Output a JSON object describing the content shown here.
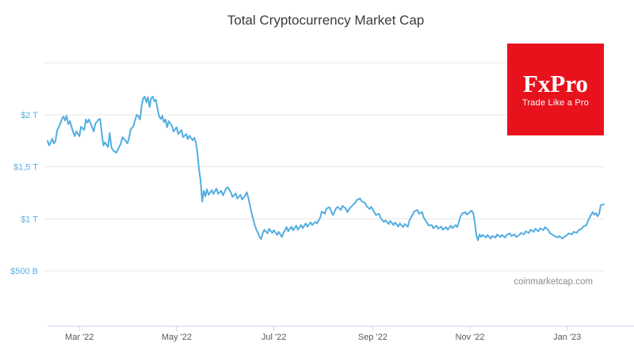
{
  "chart_data": {
    "type": "line",
    "title": "Total Cryptocurrency Market Cap",
    "source_note": "coinmarketcap.com",
    "grid": true,
    "legend": "none",
    "style": {
      "line": "#54aee1",
      "grid": "#e6e6e6",
      "axis": "#ccd6eb",
      "y_label": "#58b0e8",
      "x_label": "#595959",
      "title": "#3b3b3b",
      "source": "#8c8c8c"
    },
    "y_axis": {
      "side": "left",
      "range_billion_usd": [
        0,
        2650
      ],
      "ticks": [
        {
          "value_billion": 500,
          "label": "$500 B"
        },
        {
          "value_billion": 1000,
          "label": "$1 T"
        },
        {
          "value_billion": 1500,
          "label": "$1,5 T"
        },
        {
          "value_billion": 2000,
          "label": "$2 T"
        },
        {
          "value_billion": 2500,
          "label": ""
        }
      ]
    },
    "x_axis": {
      "ticks": [
        {
          "day": 20,
          "label": "Mar '22"
        },
        {
          "day": 81,
          "label": "May '22"
        },
        {
          "day": 142,
          "label": "Jul '22"
        },
        {
          "day": 204,
          "label": "Sep '22"
        },
        {
          "day": 265,
          "label": "Nov '22"
        },
        {
          "day": 326,
          "label": "Jan '23"
        }
      ]
    },
    "series": [
      {
        "name": "Total Cryptocurrency Market Cap",
        "color": "#54aee1",
        "points_day_valueB": [
          [
            0,
            1750
          ],
          [
            1,
            1705
          ],
          [
            2,
            1735
          ],
          [
            3,
            1770
          ],
          [
            4,
            1725
          ],
          [
            5,
            1750
          ],
          [
            6,
            1850
          ],
          [
            8,
            1915
          ],
          [
            9,
            1960
          ],
          [
            10,
            1985
          ],
          [
            11,
            1945
          ],
          [
            12,
            1990
          ],
          [
            13,
            1910
          ],
          [
            14,
            1940
          ],
          [
            16,
            1835
          ],
          [
            17,
            1795
          ],
          [
            18,
            1840
          ],
          [
            20,
            1795
          ],
          [
            21,
            1885
          ],
          [
            23,
            1855
          ],
          [
            24,
            1955
          ],
          [
            25,
            1925
          ],
          [
            26,
            1955
          ],
          [
            28,
            1880
          ],
          [
            29,
            1840
          ],
          [
            30,
            1915
          ],
          [
            32,
            1955
          ],
          [
            33,
            1960
          ],
          [
            34,
            1830
          ],
          [
            35,
            1705
          ],
          [
            36,
            1735
          ],
          [
            38,
            1690
          ],
          [
            39,
            1825
          ],
          [
            40,
            1690
          ],
          [
            41,
            1660
          ],
          [
            43,
            1635
          ],
          [
            44,
            1660
          ],
          [
            46,
            1725
          ],
          [
            47,
            1785
          ],
          [
            49,
            1750
          ],
          [
            50,
            1725
          ],
          [
            51,
            1765
          ],
          [
            52,
            1855
          ],
          [
            54,
            1895
          ],
          [
            55,
            1955
          ],
          [
            56,
            2000
          ],
          [
            57,
            1985
          ],
          [
            58,
            1955
          ],
          [
            59,
            2085
          ],
          [
            60,
            2160
          ],
          [
            61,
            2175
          ],
          [
            62,
            2120
          ],
          [
            63,
            2170
          ],
          [
            64,
            2075
          ],
          [
            65,
            2160
          ],
          [
            66,
            2175
          ],
          [
            67,
            2130
          ],
          [
            68,
            2145
          ],
          [
            69,
            2055
          ],
          [
            70,
            1985
          ],
          [
            71,
            1960
          ],
          [
            72,
            1990
          ],
          [
            73,
            1930
          ],
          [
            74,
            1955
          ],
          [
            75,
            1880
          ],
          [
            76,
            1940
          ],
          [
            78,
            1895
          ],
          [
            79,
            1840
          ],
          [
            81,
            1880
          ],
          [
            82,
            1815
          ],
          [
            84,
            1855
          ],
          [
            85,
            1785
          ],
          [
            87,
            1815
          ],
          [
            88,
            1765
          ],
          [
            89,
            1800
          ],
          [
            91,
            1755
          ],
          [
            92,
            1780
          ],
          [
            93,
            1735
          ],
          [
            94,
            1635
          ],
          [
            95,
            1475
          ],
          [
            96,
            1370
          ],
          [
            97,
            1165
          ],
          [
            98,
            1270
          ],
          [
            99,
            1215
          ],
          [
            100,
            1285
          ],
          [
            101,
            1230
          ],
          [
            103,
            1275
          ],
          [
            104,
            1240
          ],
          [
            106,
            1290
          ],
          [
            107,
            1240
          ],
          [
            109,
            1270
          ],
          [
            110,
            1225
          ],
          [
            112,
            1290
          ],
          [
            113,
            1305
          ],
          [
            115,
            1255
          ],
          [
            116,
            1210
          ],
          [
            118,
            1245
          ],
          [
            119,
            1195
          ],
          [
            121,
            1230
          ],
          [
            122,
            1185
          ],
          [
            124,
            1225
          ],
          [
            125,
            1255
          ],
          [
            126,
            1200
          ],
          [
            127,
            1125
          ],
          [
            128,
            1055
          ],
          [
            129,
            995
          ],
          [
            130,
            940
          ],
          [
            131,
            895
          ],
          [
            132,
            865
          ],
          [
            133,
            825
          ],
          [
            134,
            805
          ],
          [
            135,
            860
          ],
          [
            136,
            895
          ],
          [
            138,
            860
          ],
          [
            139,
            905
          ],
          [
            141,
            865
          ],
          [
            142,
            890
          ],
          [
            144,
            845
          ],
          [
            145,
            875
          ],
          [
            147,
            825
          ],
          [
            148,
            865
          ],
          [
            150,
            920
          ],
          [
            151,
            880
          ],
          [
            153,
            925
          ],
          [
            154,
            890
          ],
          [
            156,
            935
          ],
          [
            157,
            895
          ],
          [
            159,
            940
          ],
          [
            160,
            910
          ],
          [
            162,
            955
          ],
          [
            163,
            925
          ],
          [
            165,
            965
          ],
          [
            166,
            940
          ],
          [
            168,
            970
          ],
          [
            169,
            955
          ],
          [
            171,
            1010
          ],
          [
            172,
            1070
          ],
          [
            174,
            1050
          ],
          [
            175,
            1100
          ],
          [
            177,
            1110
          ],
          [
            178,
            1070
          ],
          [
            179,
            1035
          ],
          [
            181,
            1100
          ],
          [
            182,
            1115
          ],
          [
            184,
            1085
          ],
          [
            185,
            1125
          ],
          [
            187,
            1100
          ],
          [
            188,
            1065
          ],
          [
            190,
            1110
          ],
          [
            191,
            1125
          ],
          [
            193,
            1155
          ],
          [
            194,
            1180
          ],
          [
            196,
            1195
          ],
          [
            197,
            1170
          ],
          [
            199,
            1155
          ],
          [
            200,
            1125
          ],
          [
            202,
            1095
          ],
          [
            203,
            1115
          ],
          [
            205,
            1065
          ],
          [
            206,
            1035
          ],
          [
            208,
            1050
          ],
          [
            209,
            1005
          ],
          [
            211,
            970
          ],
          [
            212,
            985
          ],
          [
            214,
            950
          ],
          [
            215,
            980
          ],
          [
            217,
            940
          ],
          [
            218,
            965
          ],
          [
            220,
            925
          ],
          [
            221,
            955
          ],
          [
            223,
            920
          ],
          [
            224,
            950
          ],
          [
            226,
            925
          ],
          [
            227,
            985
          ],
          [
            229,
            1040
          ],
          [
            230,
            1070
          ],
          [
            232,
            1085
          ],
          [
            233,
            1050
          ],
          [
            235,
            1065
          ],
          [
            236,
            1010
          ],
          [
            238,
            965
          ],
          [
            239,
            935
          ],
          [
            241,
            940
          ],
          [
            242,
            910
          ],
          [
            244,
            935
          ],
          [
            245,
            905
          ],
          [
            247,
            925
          ],
          [
            248,
            895
          ],
          [
            250,
            920
          ],
          [
            251,
            895
          ],
          [
            253,
            935
          ],
          [
            254,
            910
          ],
          [
            256,
            940
          ],
          [
            257,
            920
          ],
          [
            258,
            970
          ],
          [
            259,
            1020
          ],
          [
            260,
            1050
          ],
          [
            262,
            1065
          ],
          [
            263,
            1040
          ],
          [
            265,
            1065
          ],
          [
            266,
            1080
          ],
          [
            267,
            1055
          ],
          [
            268,
            965
          ],
          [
            269,
            845
          ],
          [
            270,
            795
          ],
          [
            271,
            850
          ],
          [
            272,
            825
          ],
          [
            273,
            845
          ],
          [
            275,
            820
          ],
          [
            276,
            845
          ],
          [
            278,
            810
          ],
          [
            279,
            835
          ],
          [
            281,
            820
          ],
          [
            282,
            850
          ],
          [
            284,
            825
          ],
          [
            285,
            845
          ],
          [
            287,
            820
          ],
          [
            288,
            845
          ],
          [
            290,
            860
          ],
          [
            291,
            835
          ],
          [
            293,
            850
          ],
          [
            294,
            825
          ],
          [
            296,
            845
          ],
          [
            297,
            865
          ],
          [
            299,
            850
          ],
          [
            300,
            880
          ],
          [
            302,
            865
          ],
          [
            303,
            895
          ],
          [
            305,
            875
          ],
          [
            306,
            905
          ],
          [
            308,
            880
          ],
          [
            309,
            910
          ],
          [
            311,
            890
          ],
          [
            312,
            920
          ],
          [
            314,
            895
          ],
          [
            315,
            865
          ],
          [
            317,
            845
          ],
          [
            318,
            835
          ],
          [
            320,
            820
          ],
          [
            321,
            835
          ],
          [
            323,
            810
          ],
          [
            324,
            825
          ],
          [
            326,
            845
          ],
          [
            327,
            860
          ],
          [
            329,
            850
          ],
          [
            330,
            875
          ],
          [
            332,
            865
          ],
          [
            333,
            890
          ],
          [
            335,
            905
          ],
          [
            336,
            925
          ],
          [
            338,
            940
          ],
          [
            339,
            980
          ],
          [
            340,
            1010
          ],
          [
            341,
            1040
          ],
          [
            342,
            1065
          ],
          [
            343,
            1040
          ],
          [
            344,
            1055
          ],
          [
            345,
            1025
          ],
          [
            346,
            1050
          ],
          [
            347,
            1130
          ],
          [
            349,
            1140
          ]
        ]
      }
    ]
  },
  "logo": {
    "name": "FxPro",
    "tagline": "Trade Like a Pro",
    "bg_color": "#e8121d",
    "text_color": "#ffffff"
  }
}
